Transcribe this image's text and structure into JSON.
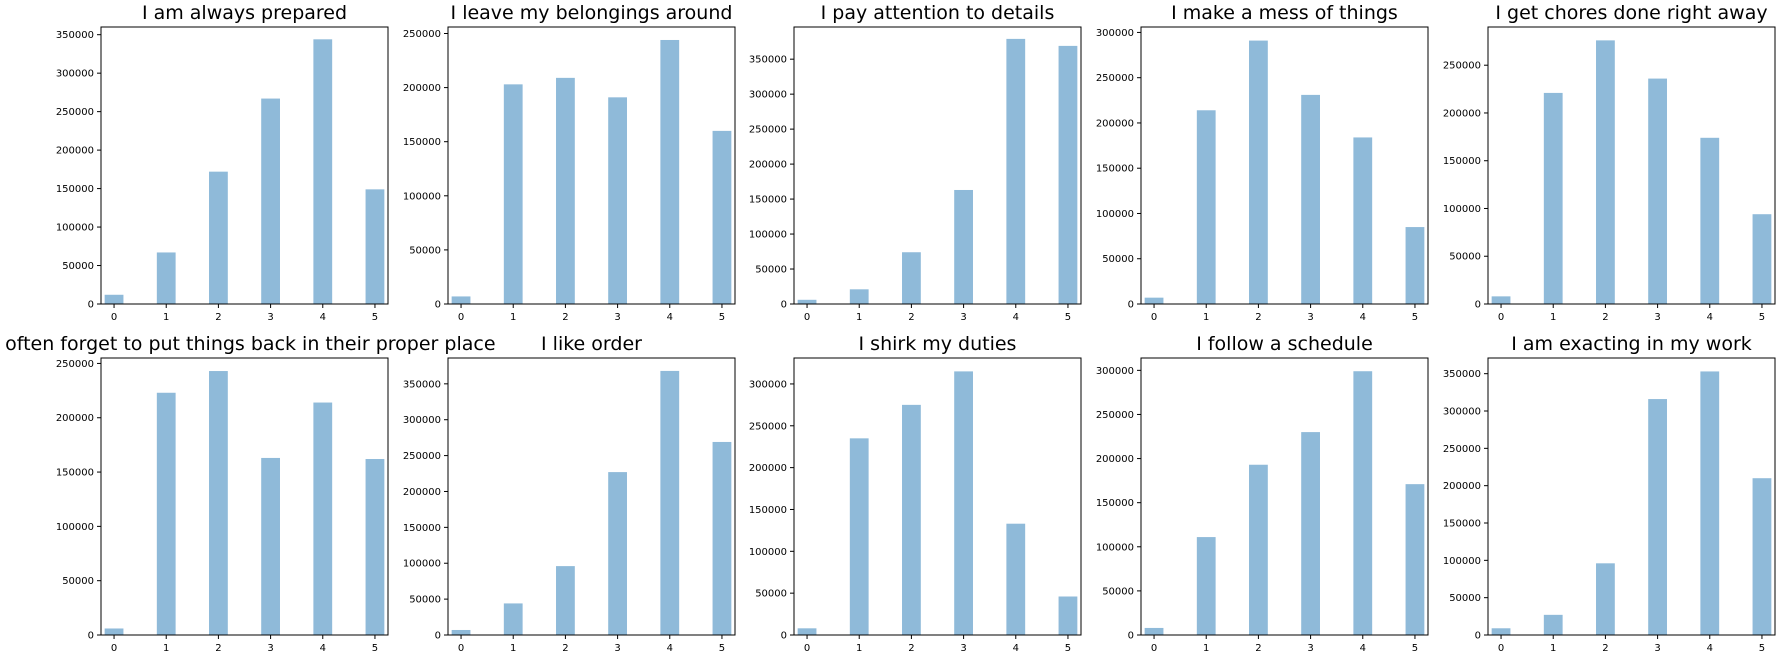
{
  "colors": {
    "bar": "#8fbad9",
    "axis": "#000000",
    "background": "#ffffff"
  },
  "chart_data": [
    {
      "type": "bar",
      "title": "I am always prepared",
      "categories": [
        0,
        1,
        2,
        3,
        4,
        5
      ],
      "values": [
        12000,
        67000,
        172000,
        267000,
        344000,
        149000
      ],
      "ylim": [
        0,
        360000
      ],
      "yticks": [
        0,
        50000,
        100000,
        150000,
        200000,
        250000,
        300000,
        350000
      ],
      "xlabel": "",
      "ylabel": "",
      "grid": false
    },
    {
      "type": "bar",
      "title": "I leave my belongings around",
      "categories": [
        0,
        1,
        2,
        3,
        4,
        5
      ],
      "values": [
        7000,
        203000,
        209000,
        191000,
        244000,
        160000
      ],
      "ylim": [
        0,
        256000
      ],
      "yticks": [
        0,
        50000,
        100000,
        150000,
        200000,
        250000
      ],
      "xlabel": "",
      "ylabel": "",
      "grid": false
    },
    {
      "type": "bar",
      "title": "I pay attention to details",
      "categories": [
        0,
        1,
        2,
        3,
        4,
        5
      ],
      "values": [
        6000,
        21000,
        74000,
        163000,
        379000,
        369000
      ],
      "ylim": [
        0,
        396000
      ],
      "yticks": [
        0,
        50000,
        100000,
        150000,
        200000,
        250000,
        300000,
        350000
      ],
      "xlabel": "",
      "ylabel": "",
      "grid": false
    },
    {
      "type": "bar",
      "title": "I make a mess of things",
      "categories": [
        0,
        1,
        2,
        3,
        4,
        5
      ],
      "values": [
        7000,
        214000,
        291000,
        231000,
        184000,
        85000
      ],
      "ylim": [
        0,
        306000
      ],
      "yticks": [
        0,
        50000,
        100000,
        150000,
        200000,
        250000,
        300000
      ],
      "xlabel": "",
      "ylabel": "",
      "grid": false
    },
    {
      "type": "bar",
      "title": "I get chores done right away",
      "categories": [
        0,
        1,
        2,
        3,
        4,
        5
      ],
      "values": [
        8000,
        221000,
        276000,
        236000,
        174000,
        94000
      ],
      "ylim": [
        0,
        290000
      ],
      "yticks": [
        0,
        50000,
        100000,
        150000,
        200000,
        250000
      ],
      "xlabel": "",
      "ylabel": "",
      "grid": false
    },
    {
      "type": "bar",
      "title": "I often forget to put things back in their proper place",
      "categories": [
        0,
        1,
        2,
        3,
        4,
        5
      ],
      "values": [
        6000,
        223000,
        243000,
        163000,
        214000,
        162000
      ],
      "ylim": [
        0,
        255000
      ],
      "yticks": [
        0,
        50000,
        100000,
        150000,
        200000,
        250000
      ],
      "xlabel": "",
      "ylabel": "",
      "grid": false
    },
    {
      "type": "bar",
      "title": "I like order",
      "categories": [
        0,
        1,
        2,
        3,
        4,
        5
      ],
      "values": [
        7000,
        44000,
        96000,
        227000,
        368000,
        269000
      ],
      "ylim": [
        0,
        386000
      ],
      "yticks": [
        0,
        50000,
        100000,
        150000,
        200000,
        250000,
        300000,
        350000
      ],
      "xlabel": "",
      "ylabel": "",
      "grid": false
    },
    {
      "type": "bar",
      "title": "I shirk my duties",
      "categories": [
        0,
        1,
        2,
        3,
        4,
        5
      ],
      "values": [
        8000,
        235000,
        275000,
        315000,
        133000,
        46000
      ],
      "ylim": [
        0,
        331000
      ],
      "yticks": [
        0,
        50000,
        100000,
        150000,
        200000,
        250000,
        300000
      ],
      "xlabel": "",
      "ylabel": "",
      "grid": false
    },
    {
      "type": "bar",
      "title": "I follow a schedule",
      "categories": [
        0,
        1,
        2,
        3,
        4,
        5
      ],
      "values": [
        8000,
        111000,
        193000,
        230000,
        299000,
        171000
      ],
      "ylim": [
        0,
        314000
      ],
      "yticks": [
        0,
        50000,
        100000,
        150000,
        200000,
        250000,
        300000
      ],
      "xlabel": "",
      "ylabel": "",
      "grid": false
    },
    {
      "type": "bar",
      "title": "I am exacting in my work",
      "categories": [
        0,
        1,
        2,
        3,
        4,
        5
      ],
      "values": [
        9000,
        27000,
        96000,
        316000,
        353000,
        210000
      ],
      "ylim": [
        0,
        371000
      ],
      "yticks": [
        0,
        50000,
        100000,
        150000,
        200000,
        250000,
        300000,
        350000
      ],
      "xlabel": "",
      "ylabel": "",
      "grid": false
    }
  ]
}
